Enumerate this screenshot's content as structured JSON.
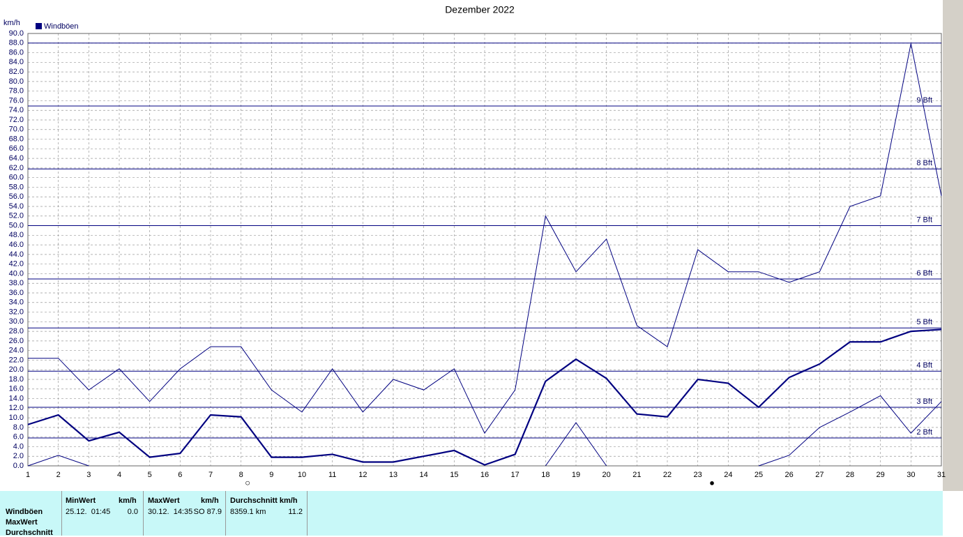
{
  "chart_data": {
    "type": "line",
    "title": "Dezember 2022",
    "y_unit": "km/h",
    "categories": [
      "1",
      "2",
      "3",
      "4",
      "5",
      "6",
      "7",
      "8",
      "9",
      "10",
      "11",
      "12",
      "13",
      "14",
      "15",
      "16",
      "17",
      "18",
      "19",
      "20",
      "21",
      "22",
      "23",
      "24",
      "25",
      "26",
      "27",
      "28",
      "29",
      "30",
      "31"
    ],
    "series": [
      {
        "name": "Windböen",
        "color": "#000080",
        "values": [
          8.6,
          10.6,
          5.2,
          7.0,
          1.8,
          2.6,
          10.6,
          10.2,
          1.8,
          1.8,
          2.4,
          0.8,
          0.8,
          2.0,
          3.2,
          0.2,
          2.4,
          17.6,
          22.2,
          18.2,
          10.8,
          10.2,
          18.0,
          17.2,
          12.2,
          18.4,
          21.2,
          25.8,
          25.8,
          28.0,
          28.4
        ],
        "max_values": [
          22.4,
          22.4,
          15.8,
          20.2,
          13.4,
          20.2,
          24.8,
          24.8,
          15.8,
          11.2,
          20.2,
          11.2,
          18.0,
          15.8,
          20.2,
          6.8,
          15.8,
          52.0,
          40.4,
          47.2,
          29.2,
          24.8,
          45.0,
          40.4,
          40.4,
          38.2,
          40.4,
          54.0,
          56.2,
          87.9,
          56.2
        ],
        "min_values": [
          0.0,
          2.2,
          0.0,
          null,
          null,
          null,
          null,
          null,
          null,
          null,
          null,
          null,
          null,
          null,
          null,
          null,
          null,
          0.0,
          9.0,
          0.0,
          null,
          null,
          null,
          null,
          0.0,
          2.2,
          8.0,
          11.2,
          14.6,
          6.8,
          13.4
        ]
      }
    ],
    "reference_lines": [
      {
        "value": 5.8,
        "label": "2 Bft"
      },
      {
        "value": 12.2,
        "label": "3 Bft"
      },
      {
        "value": 19.7,
        "label": "4 Bft"
      },
      {
        "value": 28.7,
        "label": "5 Bft"
      },
      {
        "value": 38.9,
        "label": "6 Bft"
      },
      {
        "value": 50.0,
        "label": "7 Bft"
      },
      {
        "value": 61.8,
        "label": "8 Bft"
      },
      {
        "value": 74.9,
        "label": "9 Bft"
      }
    ],
    "max_line": 88.0,
    "ylim": [
      0,
      90
    ],
    "yticks": [
      {
        "value": 0,
        "label": "0.0"
      },
      {
        "value": 2,
        "label": "2.0"
      },
      {
        "value": 4,
        "label": "4.0"
      },
      {
        "value": 6,
        "label": "6.0"
      },
      {
        "value": 8,
        "label": "8.0"
      },
      {
        "value": 10,
        "label": "10.0"
      },
      {
        "value": 12,
        "label": "12.0"
      },
      {
        "value": 14,
        "label": "14.0"
      },
      {
        "value": 16,
        "label": "16.0"
      },
      {
        "value": 18,
        "label": "18.0"
      },
      {
        "value": 20,
        "label": "20.0"
      },
      {
        "value": 22,
        "label": "22.0"
      },
      {
        "value": 24,
        "label": "24.0"
      },
      {
        "value": 26,
        "label": "26.0"
      },
      {
        "value": 28,
        "label": "28.0"
      },
      {
        "value": 30,
        "label": "30.0"
      },
      {
        "value": 32,
        "label": "32.0"
      },
      {
        "value": 34,
        "label": "34.0"
      },
      {
        "value": 36,
        "label": "36.0"
      },
      {
        "value": 38,
        "label": "38.0"
      },
      {
        "value": 40,
        "label": "40.0"
      },
      {
        "value": 42,
        "label": "42.0"
      },
      {
        "value": 44,
        "label": "44.0"
      },
      {
        "value": 46,
        "label": "46.0"
      },
      {
        "value": 48,
        "label": "48.0"
      },
      {
        "value": 50,
        "label": "50.0"
      },
      {
        "value": 52,
        "label": "52.0"
      },
      {
        "value": 54,
        "label": "54.0"
      },
      {
        "value": 56,
        "label": "56.0"
      },
      {
        "value": 58,
        "label": "58.0"
      },
      {
        "value": 60,
        "label": "60.0"
      },
      {
        "value": 62,
        "label": "62.0"
      },
      {
        "value": 64,
        "label": "64.0"
      },
      {
        "value": 66,
        "label": "66.0"
      },
      {
        "value": 68,
        "label": "68.0"
      },
      {
        "value": 70,
        "label": "70.0"
      },
      {
        "value": 72,
        "label": "72.0"
      },
      {
        "value": 74,
        "label": "74.0"
      },
      {
        "value": 76,
        "label": "76.0"
      },
      {
        "value": 78,
        "label": "78.0"
      },
      {
        "value": 80,
        "label": "80.0"
      },
      {
        "value": 82,
        "label": "82.0"
      },
      {
        "value": 84,
        "label": "84.0"
      },
      {
        "value": 86,
        "label": "86.0"
      },
      {
        "value": 88,
        "label": "88.0"
      },
      {
        "value": 90,
        "label": "90.0"
      }
    ],
    "grid": true
  },
  "summary_table": {
    "headers": [
      [
        "MinWert",
        "km/h"
      ],
      [
        "MaxWert",
        "km/h"
      ],
      [
        "Durchschnitt km/h"
      ]
    ],
    "row_labels": [
      "Windböen",
      "MaxWert",
      "Durchschnitt"
    ],
    "rows": [
      [
        [
          "25.12.  01:45",
          "0.0"
        ],
        [
          "30.12.  14:35",
          "SO 87.9"
        ],
        [
          "8359.1 km",
          "11.2"
        ]
      ]
    ]
  }
}
